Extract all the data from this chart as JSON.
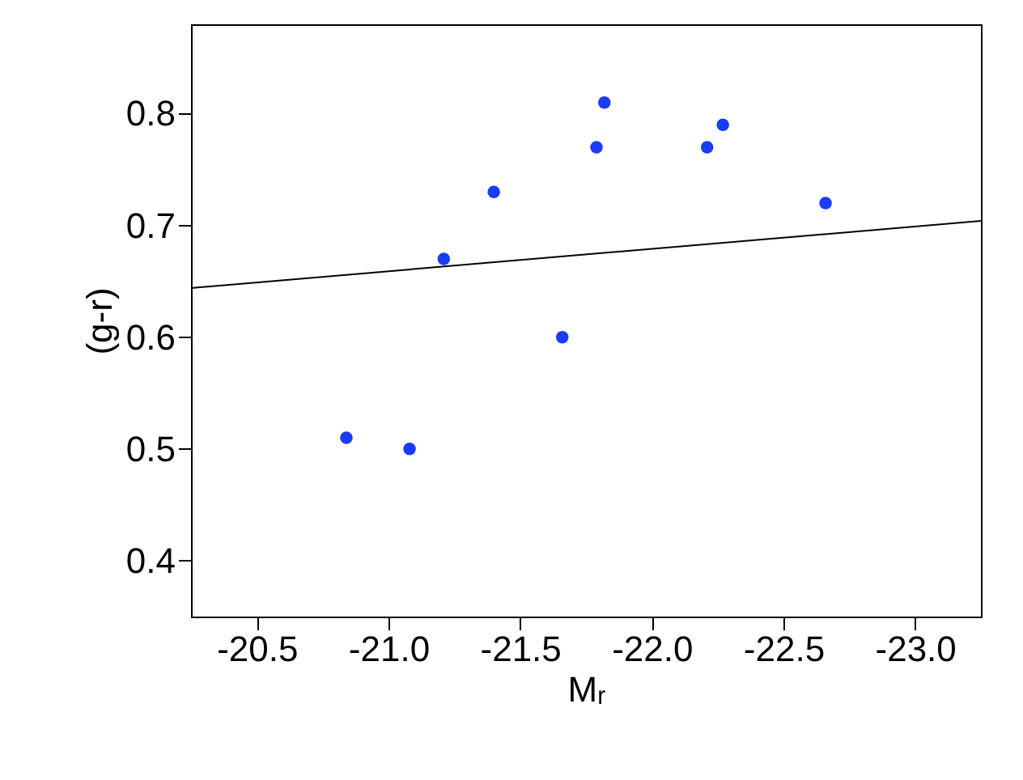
{
  "chart_data": {
    "type": "scatter",
    "xlabel": "Mᵣ",
    "ylabel": "(g-r)",
    "xlim": [
      -20.25,
      -23.25
    ],
    "ylim": [
      0.35,
      0.88
    ],
    "xticks": [
      {
        "value": -20.5,
        "label": "-20.5"
      },
      {
        "value": -21,
        "label": "-21.0"
      },
      {
        "value": -21.5,
        "label": "-21.5"
      },
      {
        "value": -22,
        "label": "-22.0"
      },
      {
        "value": -22.5,
        "label": "-22.5"
      },
      {
        "value": -23,
        "label": "-23.0"
      }
    ],
    "yticks": [
      {
        "value": 0.4,
        "label": "0.4"
      },
      {
        "value": 0.5,
        "label": "0.5"
      },
      {
        "value": 0.6,
        "label": "0.6"
      },
      {
        "value": 0.7,
        "label": "0.7"
      },
      {
        "value": 0.8,
        "label": "0.8"
      }
    ],
    "grid": false,
    "marker": "circle",
    "series": [
      {
        "type": "scatter",
        "color": "#1a3cf5",
        "x": [
          -20.84,
          -21.08,
          -21.21,
          -21.4,
          -21.66,
          -21.79,
          -21.82,
          -22.21,
          -22.27,
          -22.66
        ],
        "values": [
          0.51,
          0.5,
          0.67,
          0.73,
          0.6,
          0.77,
          0.81,
          0.77,
          0.79,
          0.72
        ]
      },
      {
        "type": "line",
        "color": "#000000",
        "line_style": "solid",
        "marker": "none",
        "x": [
          -20.25,
          -23.25
        ],
        "values": [
          0.644,
          0.704
        ]
      }
    ]
  }
}
